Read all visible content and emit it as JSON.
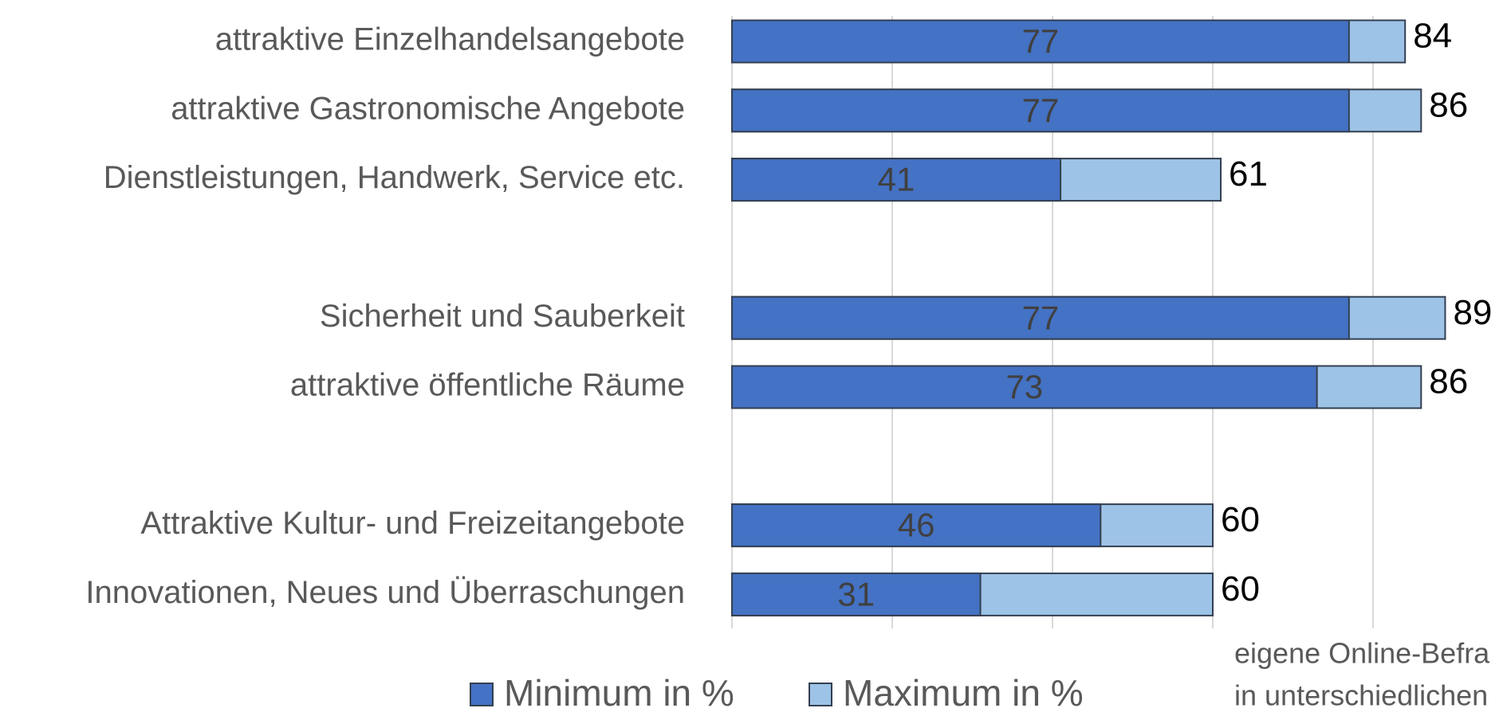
{
  "chart_data": {
    "type": "bar",
    "categories": [
      "attraktive Einzelhandelsangebote",
      "attraktive Gastronomische Angebote",
      "Dienstleistungen, Handwerk, Service etc.",
      null,
      "Sicherheit und Sauberkeit",
      "attraktive öffentliche Räume",
      null,
      "Attraktive Kultur- und Freizeitangebote",
      "Innovationen, Neues und Überraschungen"
    ],
    "series": [
      {
        "name": "Minimum in %",
        "color": "#4472c4",
        "values": [
          77,
          77,
          41,
          null,
          77,
          73,
          null,
          46,
          31
        ]
      },
      {
        "name": "Maximum in %",
        "color": "#9dc3e6",
        "values": [
          84,
          86,
          61,
          null,
          89,
          86,
          null,
          60,
          60
        ]
      }
    ],
    "xlim": [
      0,
      100
    ],
    "xticks": [
      0,
      20,
      40,
      60,
      80
    ],
    "grid": true,
    "legend": "bottom",
    "annotations": [
      "eigene Online-Befra",
      "in unterschiedlichen"
    ]
  }
}
